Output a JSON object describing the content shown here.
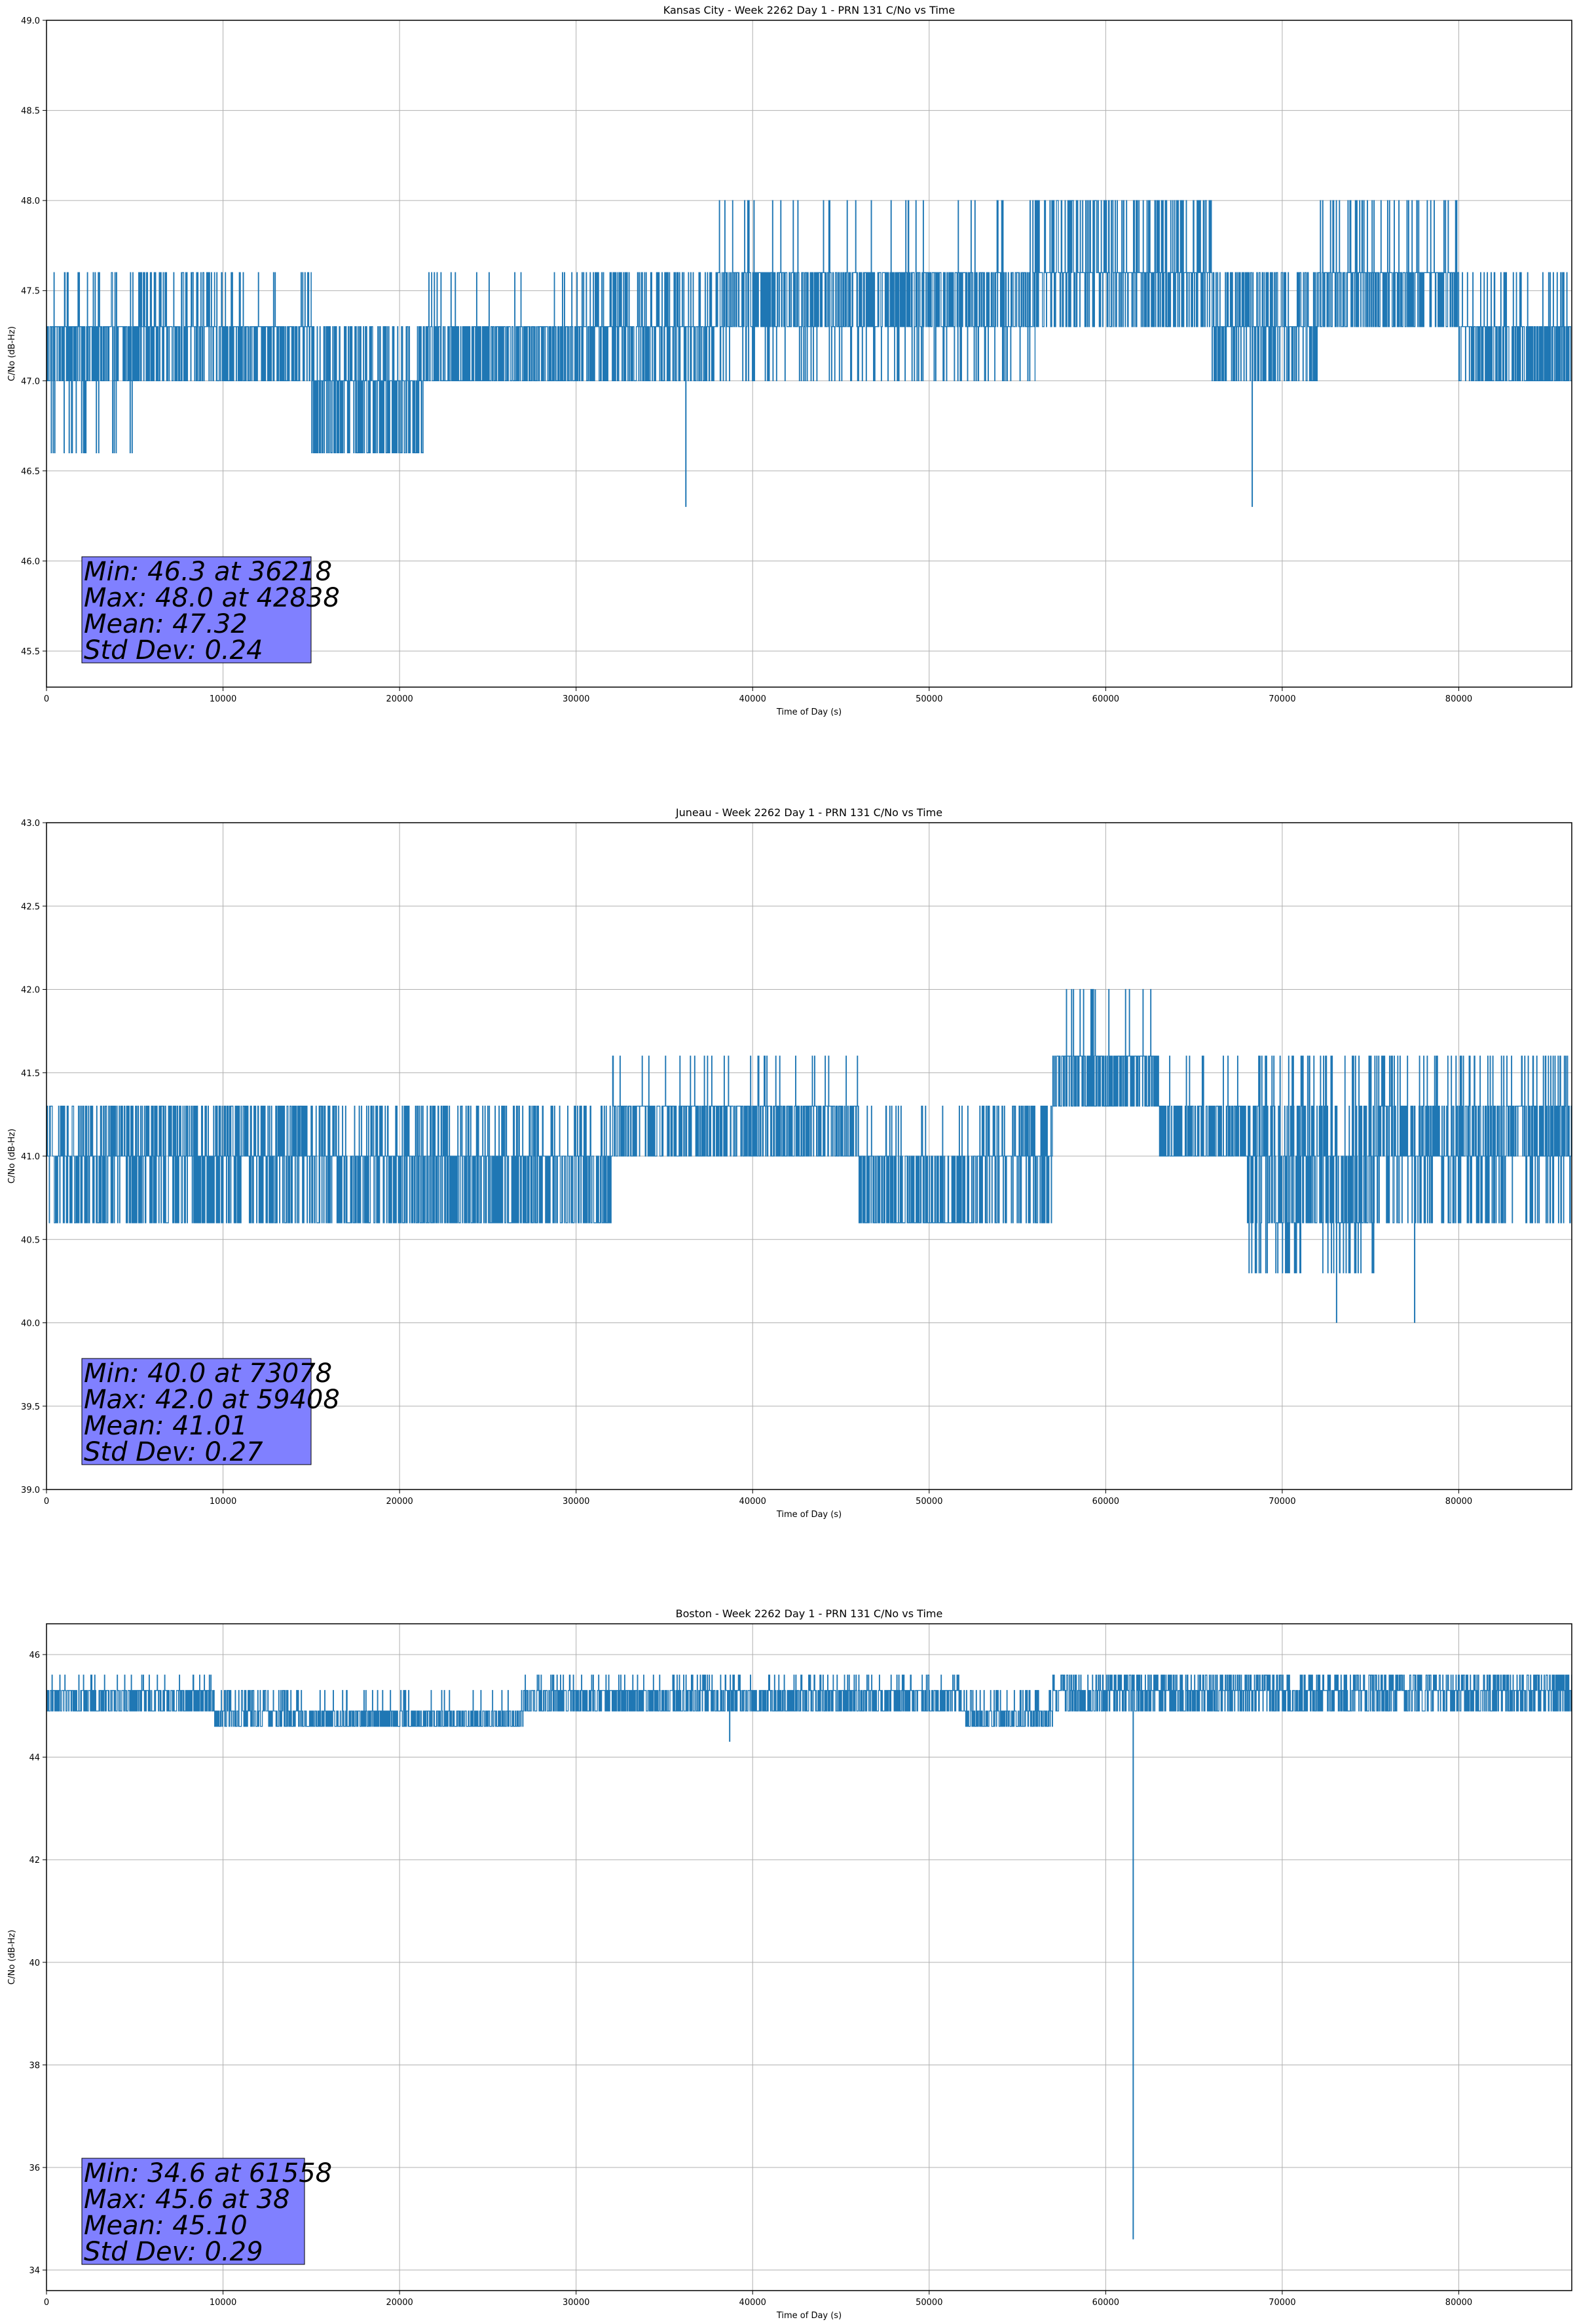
{
  "colors": {
    "line": "#1f77b4",
    "grid": "#b0b0b0",
    "stat_box": "#8080ff"
  },
  "chart_data": [
    {
      "type": "line",
      "title": "Kansas City - Week 2262 Day 1 - PRN 131 C/No vs Time",
      "xlabel": "Time of Day (s)",
      "ylabel": "C/No (dB-Hz)",
      "xlim": [
        0,
        86400
      ],
      "ylim": [
        45.3,
        49.0
      ],
      "xticks": [
        0,
        10000,
        20000,
        30000,
        40000,
        50000,
        60000,
        70000,
        80000
      ],
      "yticks": [
        45.5,
        46.0,
        46.5,
        47.0,
        47.5,
        48.0,
        48.5,
        49.0
      ],
      "ytick_labels": [
        "45.5",
        "46.0",
        "46.5",
        "47.0",
        "47.5",
        "48.0",
        "48.5",
        "49.0"
      ],
      "grid": true,
      "series_segments": [
        {
          "x": [
            0,
            5000
          ],
          "levels": [
            46.6,
            47.0,
            47.3,
            47.6
          ],
          "weights": [
            0.08,
            0.35,
            0.5,
            0.07
          ]
        },
        {
          "x": [
            5000,
            10500
          ],
          "levels": [
            47.0,
            47.3,
            47.6
          ],
          "weights": [
            0.3,
            0.5,
            0.2
          ]
        },
        {
          "x": [
            10500,
            15000
          ],
          "levels": [
            47.0,
            47.3,
            47.6
          ],
          "weights": [
            0.4,
            0.55,
            0.05
          ]
        },
        {
          "x": [
            15000,
            18500
          ],
          "levels": [
            46.6,
            47.0,
            47.3
          ],
          "weights": [
            0.3,
            0.4,
            0.3
          ]
        },
        {
          "x": [
            18500,
            21500
          ],
          "levels": [
            46.6,
            47.0,
            47.3
          ],
          "weights": [
            0.35,
            0.4,
            0.25
          ]
        },
        {
          "x": [
            21500,
            30000
          ],
          "levels": [
            47.0,
            47.3,
            47.6
          ],
          "weights": [
            0.45,
            0.5,
            0.05
          ]
        },
        {
          "x": [
            30000,
            38000
          ],
          "levels": [
            47.0,
            47.3,
            47.6
          ],
          "weights": [
            0.3,
            0.5,
            0.2
          ]
        },
        {
          "x": [
            38000,
            56000
          ],
          "levels": [
            47.0,
            47.3,
            47.6,
            48.0
          ],
          "weights": [
            0.1,
            0.4,
            0.45,
            0.05
          ]
        },
        {
          "x": [
            56000,
            66000
          ],
          "levels": [
            47.3,
            47.6,
            48.0
          ],
          "weights": [
            0.25,
            0.5,
            0.25
          ]
        },
        {
          "x": [
            66000,
            72000
          ],
          "levels": [
            47.0,
            47.3,
            47.6
          ],
          "weights": [
            0.3,
            0.45,
            0.25
          ]
        },
        {
          "x": [
            72000,
            80000
          ],
          "levels": [
            47.3,
            47.6,
            48.0
          ],
          "weights": [
            0.35,
            0.55,
            0.1
          ]
        },
        {
          "x": [
            80000,
            86400
          ],
          "levels": [
            47.0,
            47.3,
            47.6
          ],
          "weights": [
            0.45,
            0.45,
            0.1
          ]
        }
      ],
      "spikes": [
        {
          "x": 36218,
          "y": 46.3
        },
        {
          "x": 68300,
          "y": 46.3
        }
      ],
      "stats": [
        "Min: 46.3 at 36218",
        "Max: 48.0 at 42838",
        "Mean: 47.32",
        "Std Dev: 0.24"
      ]
    },
    {
      "type": "line",
      "title": "Juneau - Week 2262 Day 1 - PRN 131 C/No vs Time",
      "xlabel": "Time of Day (s)",
      "ylabel": "C/No (dB-Hz)",
      "xlim": [
        0,
        86400
      ],
      "ylim": [
        39.0,
        43.0
      ],
      "xticks": [
        0,
        10000,
        20000,
        30000,
        40000,
        50000,
        60000,
        70000,
        80000
      ],
      "yticks": [
        39.0,
        39.5,
        40.0,
        40.5,
        41.0,
        41.5,
        42.0,
        42.5,
        43.0
      ],
      "ytick_labels": [
        "39.0",
        "39.5",
        "40.0",
        "40.5",
        "41.0",
        "41.5",
        "42.0",
        "42.5",
        "43.0"
      ],
      "grid": true,
      "series_segments": [
        {
          "x": [
            0,
            15000
          ],
          "levels": [
            40.6,
            41.0,
            41.3
          ],
          "weights": [
            0.3,
            0.4,
            0.3
          ]
        },
        {
          "x": [
            15000,
            32000
          ],
          "levels": [
            40.6,
            41.0,
            41.3
          ],
          "weights": [
            0.4,
            0.4,
            0.2
          ]
        },
        {
          "x": [
            32000,
            46000
          ],
          "levels": [
            41.0,
            41.3,
            41.6
          ],
          "weights": [
            0.4,
            0.55,
            0.05
          ]
        },
        {
          "x": [
            46000,
            53000
          ],
          "levels": [
            40.6,
            41.0,
            41.3
          ],
          "weights": [
            0.55,
            0.4,
            0.05
          ]
        },
        {
          "x": [
            53000,
            57000
          ],
          "levels": [
            40.6,
            41.0,
            41.3
          ],
          "weights": [
            0.2,
            0.5,
            0.3
          ]
        },
        {
          "x": [
            57000,
            63000
          ],
          "levels": [
            41.3,
            41.6,
            42.0
          ],
          "weights": [
            0.45,
            0.5,
            0.05
          ]
        },
        {
          "x": [
            63000,
            68000
          ],
          "levels": [
            41.0,
            41.3,
            41.6
          ],
          "weights": [
            0.5,
            0.45,
            0.05
          ]
        },
        {
          "x": [
            68000,
            75500
          ],
          "levels": [
            40.3,
            40.6,
            41.0,
            41.3,
            41.6
          ],
          "weights": [
            0.1,
            0.35,
            0.3,
            0.15,
            0.1
          ]
        },
        {
          "x": [
            75500,
            86400
          ],
          "levels": [
            40.6,
            41.0,
            41.3,
            41.6
          ],
          "weights": [
            0.2,
            0.4,
            0.3,
            0.1
          ]
        }
      ],
      "spikes": [
        {
          "x": 73078,
          "y": 40.0
        },
        {
          "x": 59408,
          "y": 42.0
        },
        {
          "x": 77500,
          "y": 40.0
        }
      ],
      "stats": [
        "Min: 40.0 at 73078",
        "Max: 42.0 at 59408",
        "Mean: 41.01",
        "Std Dev: 0.27"
      ]
    },
    {
      "type": "line",
      "title": "Boston - Week 2262 Day 1 - PRN 131 C/No vs Time",
      "xlabel": "Time of Day (s)",
      "ylabel": "C/No (dB-Hz)",
      "xlim": [
        0,
        86400
      ],
      "ylim": [
        33.6,
        46.6
      ],
      "xticks": [
        0,
        10000,
        20000,
        30000,
        40000,
        50000,
        60000,
        70000,
        80000
      ],
      "yticks": [
        34,
        36,
        38,
        40,
        42,
        44,
        46
      ],
      "ytick_labels": [
        "34",
        "36",
        "38",
        "40",
        "42",
        "44",
        "46"
      ],
      "grid": true,
      "series_segments": [
        {
          "x": [
            0,
            9500
          ],
          "levels": [
            44.9,
            45.3,
            45.6
          ],
          "weights": [
            0.45,
            0.5,
            0.05
          ]
        },
        {
          "x": [
            9500,
            14500
          ],
          "levels": [
            44.6,
            44.9,
            45.3
          ],
          "weights": [
            0.4,
            0.4,
            0.2
          ]
        },
        {
          "x": [
            14500,
            27000
          ],
          "levels": [
            44.6,
            44.9,
            45.3
          ],
          "weights": [
            0.5,
            0.45,
            0.05
          ]
        },
        {
          "x": [
            27000,
            52000
          ],
          "levels": [
            44.9,
            45.3,
            45.6
          ],
          "weights": [
            0.45,
            0.45,
            0.1
          ]
        },
        {
          "x": [
            52000,
            57000
          ],
          "levels": [
            44.6,
            44.9,
            45.3
          ],
          "weights": [
            0.45,
            0.45,
            0.1
          ]
        },
        {
          "x": [
            57000,
            86400
          ],
          "levels": [
            44.9,
            45.3,
            45.6
          ],
          "weights": [
            0.35,
            0.4,
            0.25
          ]
        }
      ],
      "spikes": [
        {
          "x": 61558,
          "y": 34.6
        },
        {
          "x": 38700,
          "y": 44.3
        }
      ],
      "stats": [
        "Min: 34.6 at 61558",
        "Max: 45.6 at 38",
        "Mean: 45.10",
        "Std Dev: 0.29"
      ]
    }
  ]
}
